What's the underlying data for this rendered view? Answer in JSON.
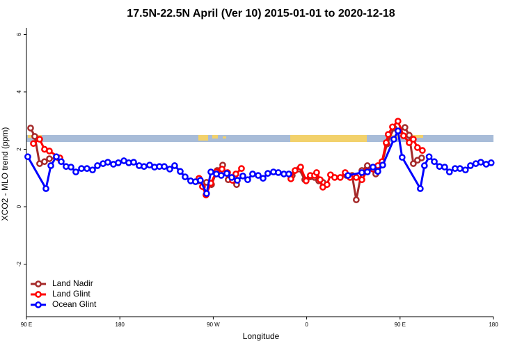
{
  "chart_data": {
    "type": "line",
    "title": "17.5N-22.5N April (Ver 10)   2015-01-01 to 2020-12-18",
    "x_label": "Longitude",
    "y_label": "XCO2 - MLO trend (ppm)",
    "xlim": [
      90,
      540
    ],
    "xticks": [
      {
        "value": 90,
        "label": "90 E"
      },
      180,
      {
        "value": 270,
        "label": "90 W"
      },
      {
        "value": 360,
        "label": "0"
      },
      {
        "value": 450,
        "label": "90 E"
      },
      {
        "value": 540,
        "label": "180"
      }
    ],
    "ylim": [
      -3.83,
      6.23
    ],
    "yticks": [
      6,
      4,
      2,
      0,
      -2
    ],
    "legend": "bottom-left",
    "series": [
      {
        "name": "Land Nadir",
        "color": "#a52a2a",
        "x": [
          94,
          98,
          102.7,
          107.4,
          112.1,
          120.8,
          null,
          255.6,
          263.6,
          268.3,
          273.7,
          279.1,
          284.4,
          292.5,
          null,
          346.1,
          352.8,
          358.2,
          363.5,
          367.6,
          371.6,
          375.6,
          null,
          398.4,
          403.8,
          407.8,
          413.2,
          418.5,
          426.6,
          432.6,
          437.3,
          444,
          449.4,
          454.7,
          458.8,
          462.8,
          466.8,
          470.8
        ],
        "values": [
          2.74,
          2.45,
          1.5,
          1.57,
          1.67,
          1.7,
          null,
          0.9,
          0.85,
          0.77,
          1.26,
          1.45,
          0.94,
          0.77,
          null,
          1.09,
          1.31,
          0.94,
          1.04,
          1.02,
          0.9,
          0.85,
          null,
          1.09,
          1.09,
          0.24,
          1.26,
          1.43,
          1.14,
          1.5,
          2.18,
          2.74,
          2.64,
          2.76,
          2.49,
          1.5,
          1.62,
          1.7
        ]
      },
      {
        "name": "Land Glint",
        "color": "#ff0000",
        "x": [
          96.7,
          102.7,
          107.4,
          112.1,
          122.2,
          null,
          256.3,
          259.6,
          263,
          267.7,
          273,
          278.4,
          283.8,
          288.5,
          291.8,
          297.2,
          null,
          344.8,
          348.8,
          354.2,
          359.5,
          363.5,
          367.6,
          369.6,
          373,
          375.6,
          379.6,
          383,
          387,
          392.4,
          397.1,
          401.8,
          407.8,
          413.2,
          417.9,
          423.9,
          428.6,
          432.6,
          436.6,
          438.6,
          442.7,
          448,
          453.4,
          458.8,
          462.8,
          466.8,
          471.5
        ],
        "values": [
          2.2,
          2.35,
          2.0,
          1.94,
          1.7,
          null,
          0.99,
          0.7,
          0.41,
          0.82,
          1.21,
          1.31,
          1.19,
          0.92,
          1.14,
          1.33,
          null,
          0.97,
          1.26,
          1.38,
          0.9,
          1.09,
          1.09,
          1.19,
          0.94,
          0.68,
          0.77,
          1.11,
          1.02,
          1.02,
          1.19,
          1.02,
          1.02,
          0.94,
          1.23,
          1.31,
          1.43,
          1.57,
          2.23,
          2.52,
          2.78,
          2.98,
          2.47,
          2.23,
          2.35,
          2.06,
          1.96
        ]
      },
      {
        "name": "Ocean Glint",
        "color": "#0000ff",
        "x": [
          91.3,
          108.8,
          113.5,
          118.8,
          123.5,
          128.2,
          132.9,
          137.6,
          143,
          148.3,
          153.7,
          158.4,
          163.8,
          168.4,
          173.8,
          178.5,
          183.9,
          188.6,
          193.3,
          198.6,
          203.3,
          208.7,
          213.4,
          218.1,
          222.8,
          228.1,
          232.8,
          238.2,
          242.9,
          248.2,
          252.9,
          257.6,
          263.6,
          267.7,
          273,
          277.7,
          283.1,
          287.8,
          293.2,
          298.5,
          303.2,
          307.9,
          313.3,
          318,
          322.6,
          328,
          332.7,
          338.1,
          342.8,
          null,
          399.8,
          413.2,
          418.5,
          423.9,
          428.6,
          433.3,
          444,
          448,
          452,
          469.5,
          473.5,
          478,
          483,
          488,
          493,
          497.6,
          503,
          507.7,
          513,
          517.8,
          523,
          527.8,
          533,
          537.8
        ],
        "values": [
          1.74,
          0.63,
          1.43,
          1.74,
          1.57,
          1.4,
          1.38,
          1.21,
          1.33,
          1.33,
          1.28,
          1.43,
          1.5,
          1.55,
          1.48,
          1.53,
          1.6,
          1.53,
          1.55,
          1.43,
          1.4,
          1.45,
          1.38,
          1.4,
          1.4,
          1.31,
          1.43,
          1.23,
          1.04,
          0.9,
          0.87,
          0.92,
          0.46,
          1.21,
          1.14,
          1.09,
          1.16,
          1.02,
          0.92,
          1.07,
          0.94,
          1.14,
          1.09,
          0.99,
          1.16,
          1.21,
          1.19,
          1.14,
          1.14,
          null,
          1.09,
          1.19,
          1.21,
          1.38,
          1.23,
          1.45,
          2.35,
          2.64,
          1.72,
          0.63,
          1.43,
          1.74,
          1.57,
          1.4,
          1.38,
          1.21,
          1.33,
          1.33,
          1.28,
          1.43,
          1.5,
          1.55,
          1.48,
          1.53
        ]
      }
    ]
  }
}
